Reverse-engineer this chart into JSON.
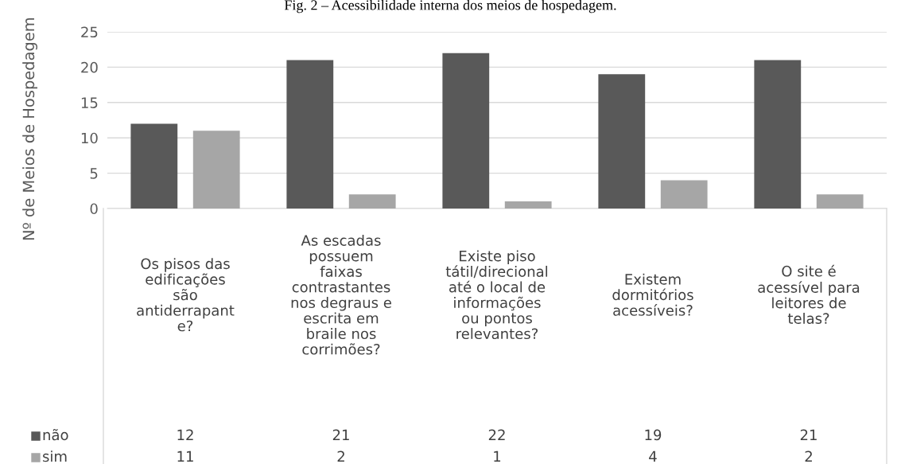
{
  "chart_data": {
    "type": "bar",
    "title": "Fig. 2 – Acessibilidade interna dos meios de hospedagem.",
    "ylabel": "Nº de Meios de Hospedagem",
    "categories": [
      "Os pisos das\nedificações\nsão\nantiderrapant\ne?",
      "As escadas\npossuem\nfaixas\ncontrastantes\nnos degraus e\nescrita em\nbraile nos\ncorrimões?",
      "Existe piso\ntátil/direcional\naté o local de\ninformações\nou pontos\nrelevantes?",
      "Existem\ndormitórios\nacessíveis?",
      "O site é\nacessível para\nleitores de\ntelas?"
    ],
    "series": [
      {
        "name": "não",
        "color": "#595959",
        "values": [
          12,
          21,
          22,
          19,
          21
        ]
      },
      {
        "name": "sim",
        "color": "#a6a6a6",
        "values": [
          11,
          2,
          1,
          4,
          2
        ]
      }
    ],
    "ylim": [
      0,
      25
    ],
    "yticks": [
      0,
      5,
      10,
      15,
      20,
      25
    ],
    "grid": "y",
    "data_labels": true,
    "legend": "bottom"
  }
}
